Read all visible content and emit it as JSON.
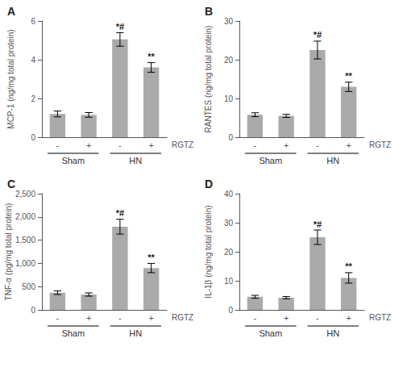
{
  "chart_data": [
    {
      "type": "bar",
      "title": "A",
      "ylabel": "MCP-1 (ng/mg total protein)",
      "xlabel": "RGTZ",
      "categories": [
        "-",
        "+",
        "-",
        "+"
      ],
      "group_labels": [
        "Sham",
        "Sham",
        "HN",
        "HN"
      ],
      "values": [
        1.2,
        1.15,
        5.05,
        3.6
      ],
      "errors": [
        0.15,
        0.12,
        0.35,
        0.25
      ],
      "annotations": [
        null,
        null,
        "*#",
        "**"
      ],
      "color": "#aaaaaa",
      "ylim": [
        0,
        6
      ],
      "yticks": [
        0,
        2,
        4,
        6
      ],
      "grid": false
    },
    {
      "type": "bar",
      "title": "B",
      "ylabel": "RANTES (ng/mg total protein)",
      "xlabel": "RGTZ",
      "categories": [
        "-",
        "+",
        "-",
        "+"
      ],
      "group_labels": [
        "Sham",
        "Sham",
        "HN",
        "HN"
      ],
      "values": [
        5.8,
        5.5,
        22.5,
        13.0
      ],
      "errors": [
        0.5,
        0.4,
        2.3,
        1.2
      ],
      "annotations": [
        null,
        null,
        "*#",
        "**"
      ],
      "color": "#aaaaaa",
      "ylim": [
        0,
        30
      ],
      "yticks": [
        0,
        10,
        20,
        30
      ],
      "grid": false
    },
    {
      "type": "bar",
      "title": "C",
      "ylabel": "TNF-α (pg/mg total protein)",
      "xlabel": "RGTZ",
      "categories": [
        "-",
        "+",
        "-",
        "+"
      ],
      "group_labels": [
        "Sham",
        "Sham",
        "HN",
        "HN"
      ],
      "values": [
        370,
        330,
        1790,
        900
      ],
      "errors": [
        40,
        35,
        160,
        100
      ],
      "annotations": [
        null,
        null,
        "*#",
        "**"
      ],
      "color": "#aaaaaa",
      "ylim": [
        0,
        2500
      ],
      "yticks": [
        0,
        500,
        1000,
        1500,
        2000,
        2500
      ],
      "grid": false
    },
    {
      "type": "bar",
      "title": "D",
      "ylabel": "IL-1β (ng/mg total protein)",
      "xlabel": "RGTZ",
      "categories": [
        "-",
        "+",
        "-",
        "+"
      ],
      "group_labels": [
        "Sham",
        "Sham",
        "HN",
        "HN"
      ],
      "values": [
        4.5,
        4.2,
        25.0,
        11.0
      ],
      "errors": [
        0.5,
        0.4,
        2.5,
        1.8
      ],
      "annotations": [
        null,
        null,
        "*#",
        "**"
      ],
      "color": "#aaaaaa",
      "ylim": [
        0,
        40
      ],
      "yticks": [
        0,
        10,
        20,
        30,
        40
      ],
      "grid": false
    }
  ]
}
